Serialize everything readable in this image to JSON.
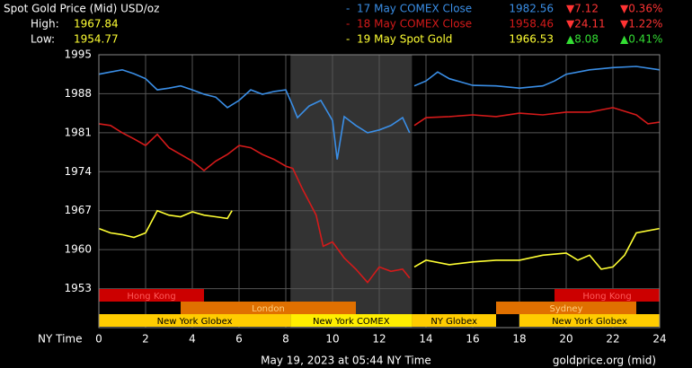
{
  "chart_data": {
    "type": "line",
    "title": "Spot Gold Price (Mid) USD/oz",
    "high_label": "High:",
    "high": "1967.84",
    "low_label": "Low:",
    "low": "1954.77",
    "x_label": "NY Time",
    "footer": "May 19, 2023 at 05:44 NY Time",
    "source": "goldprice.org (mid)",
    "xlim": [
      0,
      24
    ],
    "xticks": [
      0,
      2,
      4,
      6,
      8,
      10,
      12,
      14,
      16,
      18,
      20,
      22,
      24
    ],
    "ylim": [
      1946,
      1995
    ],
    "yticks": [
      1953,
      1960,
      1967,
      1974,
      1981,
      1988,
      1995
    ],
    "grid": true,
    "shaded": {
      "start": 8.2,
      "end": 13.4,
      "color": "#333333"
    },
    "sessions": [
      {
        "name": "Hong Kong",
        "start": 0,
        "end": 4.5,
        "row": 0,
        "color": "#cc0000",
        "text_color": "#ff5a5a"
      },
      {
        "name": "Hong Kong",
        "start": 19.5,
        "end": 24,
        "row": 0,
        "color": "#cc0000",
        "text_color": "#ff5a5a"
      },
      {
        "name": "London",
        "start": 3.5,
        "end": 11,
        "row": 1,
        "color": "#e07000",
        "text_color": "#ffd080"
      },
      {
        "name": "Sydney",
        "start": 17,
        "end": 23,
        "row": 1,
        "color": "#e07000",
        "text_color": "#ffd080"
      },
      {
        "name": "New York Globex",
        "start": 0,
        "end": 8.2,
        "row": 2,
        "color": "#ffcc00",
        "text_color": "#000000"
      },
      {
        "name": "New York COMEX",
        "start": 8.2,
        "end": 13.4,
        "row": 2,
        "color": "#ffee00",
        "text_color": "#000000"
      },
      {
        "name": "NY Globex",
        "start": 13.4,
        "end": 17,
        "row": 2,
        "color": "#ffcc00",
        "text_color": "#000000"
      },
      {
        "name": "New York Globex",
        "start": 18,
        "end": 24,
        "row": 2,
        "color": "#ffcc00",
        "text_color": "#000000"
      }
    ],
    "series": [
      {
        "name": "17 May COMEX Close",
        "color": "#3a8ee6",
        "price": "1982.56",
        "change": "▼7.12",
        "change_pct": "▼0.36%",
        "change_color": "#ff3333",
        "x": [
          0,
          0.5,
          1,
          1.5,
          2,
          2.5,
          3,
          3.5,
          4,
          4.5,
          5,
          5.5,
          6,
          6.5,
          7,
          7.5,
          8,
          8.3,
          8.5,
          9,
          9.5,
          10,
          10.2,
          10.5,
          11,
          11.5,
          12,
          12.5,
          13,
          13.3,
          13.4,
          13.5,
          14,
          14.5,
          15,
          16,
          17,
          18,
          19,
          19.5,
          20,
          21,
          22,
          23,
          24
        ],
        "values": [
          1991.5,
          1991.9,
          1992.3,
          1991.6,
          1990.7,
          1988.7,
          1989.0,
          1989.4,
          1988.7,
          1987.9,
          1987.4,
          1985.5,
          1986.8,
          1988.7,
          1987.9,
          1988.4,
          1988.7,
          1985.8,
          1983.7,
          1985.8,
          1986.8,
          1983.2,
          1976.2,
          1983.9,
          1982.3,
          1981.0,
          1981.5,
          1982.3,
          1983.7,
          1981.0,
          null,
          1989.4,
          1990.3,
          1991.9,
          1990.7,
          1989.5,
          1989.4,
          1989.0,
          1989.4,
          1990.3,
          1991.5,
          1992.3,
          1992.7,
          1992.9,
          1992.3
        ]
      },
      {
        "name": "18 May COMEX Close",
        "color": "#d41a1a",
        "price": "1958.46",
        "change": "▼24.11",
        "change_pct": "▼1.22%",
        "change_color": "#ff3333",
        "x": [
          0,
          0.5,
          1,
          1.5,
          2,
          2.5,
          3,
          3.5,
          4,
          4.5,
          5,
          5.5,
          6,
          6.5,
          7,
          7.5,
          8,
          8.3,
          8.7,
          9,
          9.3,
          9.6,
          10,
          10.5,
          11,
          11.5,
          12,
          12.5,
          13,
          13.3,
          13.4,
          13.5,
          14,
          15,
          16,
          17,
          18,
          19,
          20,
          21,
          22,
          23,
          23.5,
          24
        ],
        "values": [
          1982.6,
          1982.3,
          1981.0,
          1979.9,
          1978.7,
          1980.7,
          1978.3,
          1977.1,
          1975.9,
          1974.2,
          1975.9,
          1977.1,
          1978.7,
          1978.3,
          1977.1,
          1976.2,
          1975.0,
          1974.6,
          1971.0,
          1968.6,
          1966.2,
          1960.6,
          1961.4,
          1958.5,
          1956.5,
          1954.1,
          1956.9,
          1956.1,
          1956.5,
          1954.9,
          null,
          1982.3,
          1983.7,
          1983.9,
          1984.2,
          1983.9,
          1984.5,
          1984.2,
          1984.7,
          1984.7,
          1985.5,
          1984.2,
          1982.6,
          1982.9
        ]
      },
      {
        "name": "19 May Spot Gold",
        "color": "#ffff33",
        "price": "1966.53",
        "change": "▲8.08",
        "change_pct": "▲0.41%",
        "change_color": "#33dd33",
        "x": [
          0,
          0.5,
          1,
          1.5,
          2,
          2.5,
          3,
          3.5,
          4,
          4.5,
          5,
          5.5,
          5.7,
          9,
          13.5,
          14,
          15,
          16,
          17,
          18,
          19,
          20,
          20.5,
          21,
          21.5,
          22,
          22.5,
          23,
          24
        ],
        "values": [
          1963.8,
          1963.0,
          1962.7,
          1962.2,
          1963.0,
          1967.0,
          1966.2,
          1965.9,
          1966.8,
          1966.2,
          1965.9,
          1965.6,
          1967.0,
          null,
          1956.9,
          1958.1,
          1957.3,
          1957.8,
          1958.1,
          1958.1,
          1959.0,
          1959.4,
          1958.1,
          1959.0,
          1956.5,
          1956.9,
          1959.0,
          1963.0,
          1963.8
        ]
      }
    ]
  }
}
